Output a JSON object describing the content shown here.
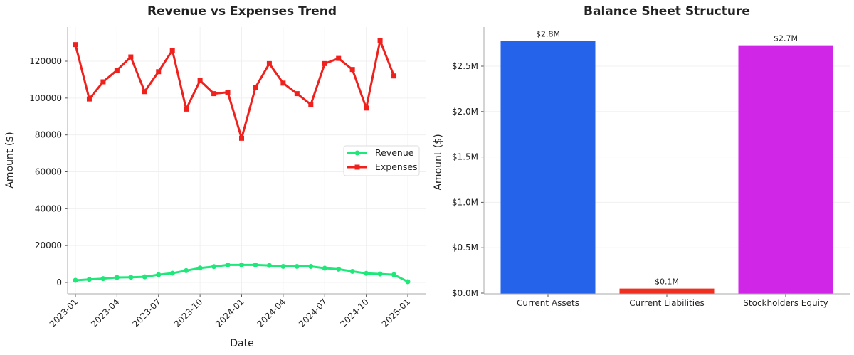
{
  "chart_data": [
    {
      "type": "line",
      "title": "Revenue vs Expenses Trend",
      "xlabel": "Date",
      "ylabel": "Amount ($)",
      "xticks": [
        "2023-01",
        "2023-04",
        "2023-07",
        "2023-10",
        "2024-01",
        "2024-04",
        "2024-07",
        "2024-10",
        "2025-01"
      ],
      "yticks": [
        0,
        20000,
        40000,
        60000,
        80000,
        100000,
        120000
      ],
      "ylim": [
        -6000,
        138000
      ],
      "grid": true,
      "legend_position": "center-right",
      "series": [
        {
          "name": "Revenue",
          "color": "#1ee87a",
          "marker": "circle",
          "x": [
            "2023-01",
            "2023-02",
            "2023-03",
            "2023-04",
            "2023-05",
            "2023-06",
            "2023-07",
            "2023-08",
            "2023-09",
            "2023-10",
            "2023-11",
            "2023-12",
            "2024-01",
            "2024-02",
            "2024-03",
            "2024-04",
            "2024-05",
            "2024-06",
            "2024-07",
            "2024-08",
            "2024-09",
            "2024-10",
            "2024-11",
            "2024-12",
            "2025-01"
          ],
          "values": [
            1150,
            1650,
            2050,
            2700,
            2800,
            3050,
            4200,
            5000,
            6400,
            7800,
            8600,
            9500,
            9500,
            9500,
            9200,
            8700,
            8700,
            8700,
            7700,
            7200,
            6000,
            4900,
            4600,
            4200,
            400
          ]
        },
        {
          "name": "Expenses",
          "color": "#f0201c",
          "marker": "square",
          "x": [
            "2023-01",
            "2023-02",
            "2023-03",
            "2023-04",
            "2023-05",
            "2023-06",
            "2023-07",
            "2023-08",
            "2023-09",
            "2023-10",
            "2023-11",
            "2023-12",
            "2024-01",
            "2024-02",
            "2024-03",
            "2024-04",
            "2024-05",
            "2024-06",
            "2024-07",
            "2024-08",
            "2024-09",
            "2024-10",
            "2024-11",
            "2024-12"
          ],
          "values": [
            129000,
            99500,
            108800,
            115100,
            122300,
            103500,
            114300,
            125900,
            94000,
            109500,
            102400,
            103100,
            78200,
            105700,
            118700,
            108100,
            102400,
            96500,
            118700,
            121500,
            115500,
            94600,
            131200,
            112000
          ]
        }
      ]
    },
    {
      "type": "bar",
      "title": "Balance Sheet Structure",
      "xlabel": "",
      "ylabel": "Amount ($)",
      "categories": [
        "Current Assets",
        "Current Liabilities",
        "Stockholders Equity"
      ],
      "values": [
        2.78,
        0.05,
        2.73
      ],
      "value_unit": "millions of dollars",
      "data_labels": [
        "$2.8M",
        "$0.1M",
        "$2.7M"
      ],
      "colors": [
        "#2563eb",
        "#ef3020",
        "#d026e8"
      ],
      "yticks": [
        "$0.0M",
        "$0.5M",
        "$1.0M",
        "$1.5M",
        "$2.0M",
        "$2.5M"
      ],
      "ytick_values": [
        0,
        0.5,
        1.0,
        1.5,
        2.0,
        2.5
      ],
      "ylim": [
        0,
        2.92
      ],
      "grid": true
    }
  ]
}
